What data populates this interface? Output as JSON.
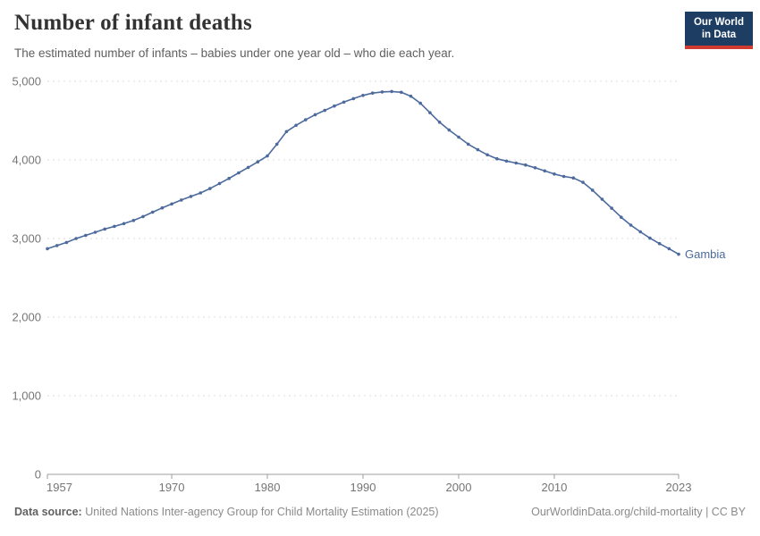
{
  "header": {
    "title": "Number of infant deaths",
    "subtitle": "The estimated number of infants – babies under one year old – who die each year.",
    "logo": {
      "line1": "Our World",
      "line2": "in Data",
      "bg": "#1d3d63",
      "accent": "#cf3a31"
    }
  },
  "chart_data": {
    "type": "line",
    "title": "Number of infant deaths",
    "xlabel": "",
    "ylabel": "",
    "xlim": [
      1957,
      2023
    ],
    "ylim": [
      0,
      5000
    ],
    "x_ticks": [
      1957,
      1970,
      1980,
      1990,
      2000,
      2010,
      2023
    ],
    "y_ticks": [
      0,
      1000,
      2000,
      3000,
      4000,
      5000
    ],
    "grid": "horizontal-dashed",
    "legend_position": "end-of-line-label",
    "x_start": 1957,
    "x_step": 1,
    "series": [
      {
        "name": "Gambia",
        "color": "#4c6a9c",
        "values": [
          2870,
          2910,
          2950,
          3000,
          3040,
          3080,
          3120,
          3155,
          3190,
          3230,
          3280,
          3335,
          3390,
          3440,
          3490,
          3535,
          3580,
          3635,
          3700,
          3765,
          3835,
          3905,
          3975,
          4050,
          4200,
          4360,
          4440,
          4510,
          4575,
          4630,
          4685,
          4735,
          4780,
          4820,
          4850,
          4865,
          4870,
          4860,
          4810,
          4720,
          4600,
          4480,
          4380,
          4290,
          4200,
          4130,
          4065,
          4015,
          3985,
          3960,
          3935,
          3900,
          3860,
          3820,
          3790,
          3770,
          3715,
          3615,
          3500,
          3385,
          3270,
          3170,
          3085,
          3005,
          2935,
          2870,
          2800
        ]
      }
    ]
  },
  "footer": {
    "source_label": "Data source:",
    "source_text": "United Nations Inter-agency Group for Child Mortality Estimation (2025)",
    "credit": "OurWorldinData.org/child-mortality | CC BY"
  }
}
